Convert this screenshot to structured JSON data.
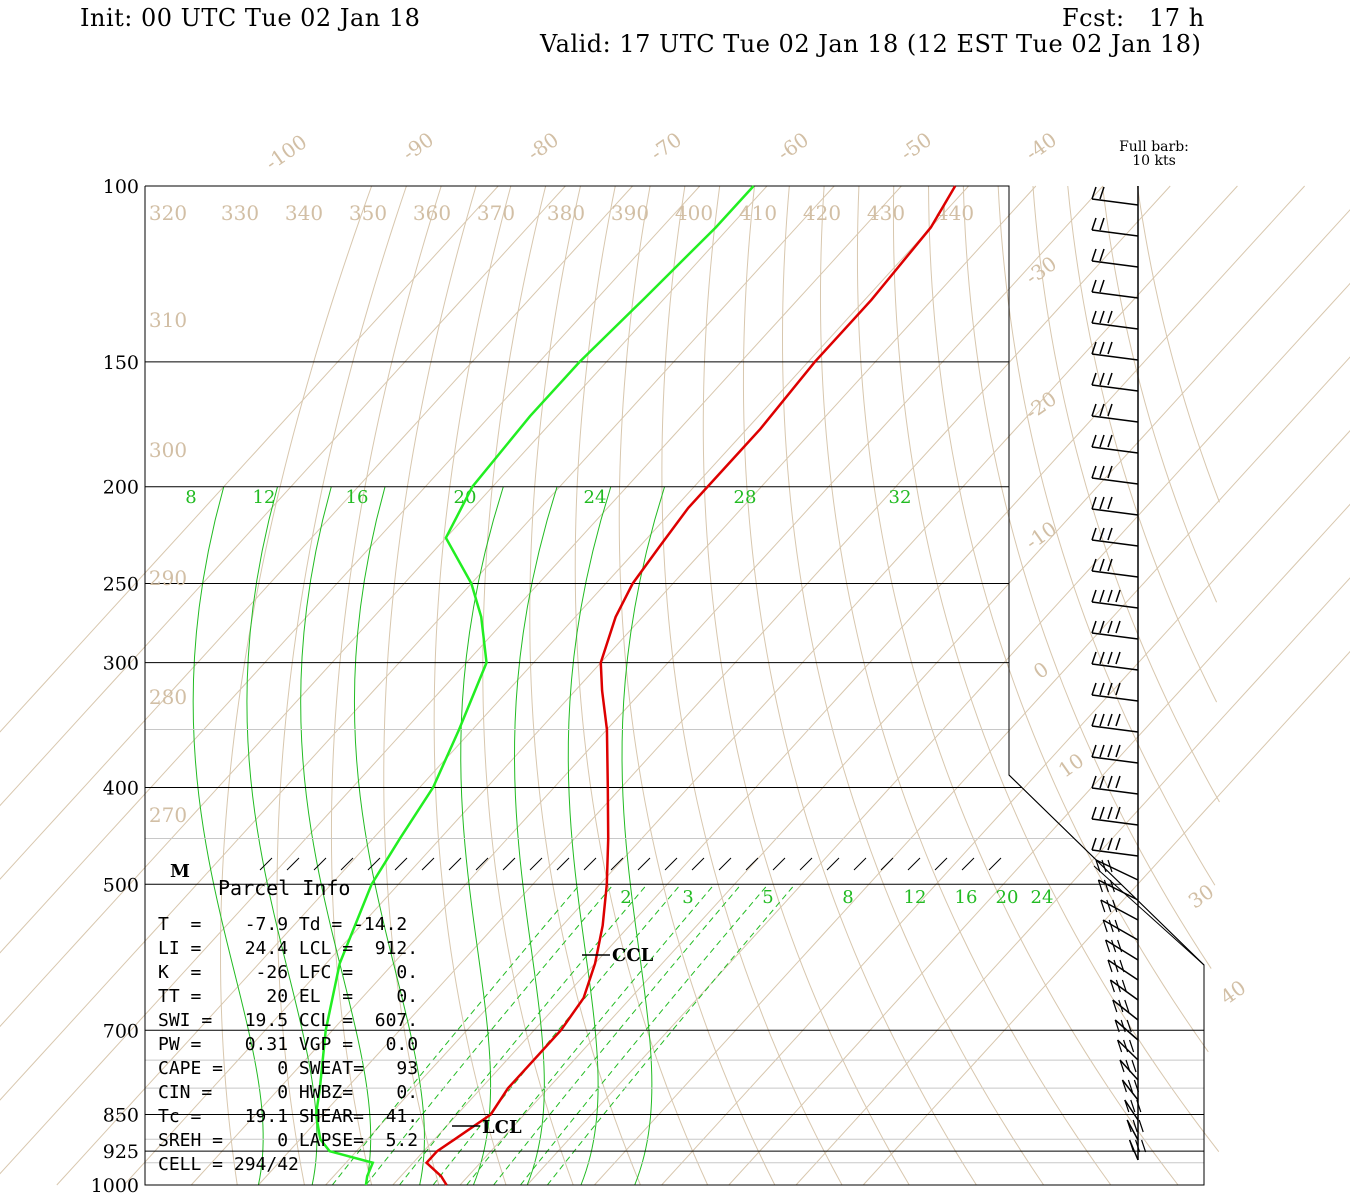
{
  "header": {
    "init": "Init: 00 UTC Tue 02 Jan 18",
    "fcst": "Fcst:   17 h",
    "valid": "Valid: 17 UTC Tue 02 Jan 18 (12 EST Tue 02 Jan 18)"
  },
  "full_barb_note": [
    "Full barb:",
    "10 kts"
  ],
  "parcel_info": {
    "title": "Parcel Info",
    "rows": [
      "T  =    -7.9 Td = -14.2",
      "LI =    24.4 LCL =  912.",
      "K  =     -26 LFC =    0.",
      "TT =      20 EL  =    0.",
      "SWI =   19.5 CCL =  607.",
      "PW =    0.31 VGP =   0.0",
      "CAPE =     0 SWEAT=   93",
      "CIN =      0 HWBZ=    0.",
      "Tc =    19.1 SHEAR=  41.",
      "SREH =     0 LAPSE=  5.2",
      "CELL = 294/42"
    ]
  },
  "markers": {
    "m": "M",
    "ccl": "CCL",
    "lcl": "LCL"
  },
  "colors": {
    "temperature": "#dd0000",
    "dewpoint": "#22ee22",
    "isotherm": "#d2bfa5",
    "mixing_ratio": "#22bb22",
    "isobar": "#000000"
  },
  "chart_data": {
    "type": "line",
    "title": "",
    "pressure_levels": [
      100,
      150,
      200,
      250,
      300,
      400,
      500,
      700,
      850,
      925,
      1000
    ],
    "pressure_labels": [
      "100",
      "150",
      "200",
      "250",
      "300",
      "400",
      "500",
      "700",
      "850",
      "925",
      "1000"
    ],
    "isotherm_labels": [
      "-100",
      "-90",
      "-80",
      "-70",
      "-60",
      "-50",
      "-40",
      "-30",
      "-20",
      "-10",
      "0",
      "10",
      "30",
      "40"
    ],
    "theta_labels": [
      "320",
      "330",
      "340",
      "350",
      "360",
      "370",
      "380",
      "390",
      "400",
      "410",
      "420",
      "430",
      "440",
      "310",
      "300",
      "290",
      "280",
      "270"
    ],
    "mixing_ratio_labels_upper": [
      "8",
      "12",
      "16",
      "20",
      "24",
      "28",
      "32"
    ],
    "mixing_ratio_labels_lower": [
      "2",
      "3",
      "5",
      "8",
      "12",
      "16",
      "20",
      "24"
    ],
    "series": [
      {
        "name": "Temperature",
        "points": [
          [
            100,
            -62
          ],
          [
            110,
            -60
          ],
          [
            130,
            -59
          ],
          [
            150,
            -59
          ],
          [
            175,
            -58
          ],
          [
            190,
            -58
          ],
          [
            210,
            -58
          ],
          [
            230,
            -57
          ],
          [
            250,
            -56
          ],
          [
            270,
            -54
          ],
          [
            300,
            -50
          ],
          [
            320,
            -46
          ],
          [
            350,
            -40
          ],
          [
            400,
            -32
          ],
          [
            450,
            -25
          ],
          [
            500,
            -19
          ],
          [
            550,
            -14
          ],
          [
            600,
            -10
          ],
          [
            650,
            -7
          ],
          [
            700,
            -6
          ],
          [
            750,
            -6
          ],
          [
            800,
            -6
          ],
          [
            850,
            -5
          ],
          [
            900,
            -7
          ],
          [
            925,
            -8
          ],
          [
            950,
            -8
          ],
          [
            980,
            -4
          ],
          [
            1000,
            -2
          ]
        ]
      },
      {
        "name": "Dewpoint",
        "points": [
          [
            100,
            -92
          ],
          [
            110,
            -92
          ],
          [
            130,
            -93
          ],
          [
            150,
            -94
          ],
          [
            170,
            -94
          ],
          [
            200,
            -93
          ],
          [
            225,
            -90
          ],
          [
            250,
            -80
          ],
          [
            270,
            -74
          ],
          [
            300,
            -67
          ],
          [
            350,
            -62
          ],
          [
            400,
            -58
          ],
          [
            450,
            -56
          ],
          [
            500,
            -54
          ],
          [
            600,
            -48
          ],
          [
            700,
            -41
          ],
          [
            800,
            -34
          ],
          [
            850,
            -31
          ],
          [
            900,
            -27
          ],
          [
            925,
            -24
          ],
          [
            950,
            -16
          ],
          [
            980,
            -15
          ],
          [
            1000,
            -14
          ]
        ]
      }
    ],
    "wind_barbs_note": "Full barb: 10 kts"
  }
}
